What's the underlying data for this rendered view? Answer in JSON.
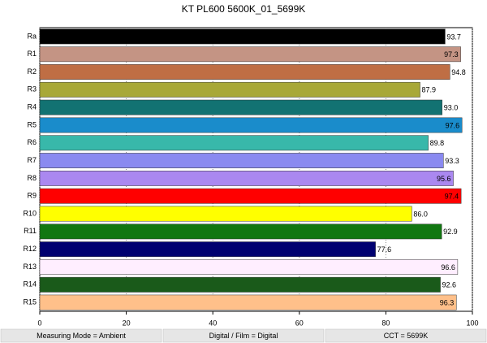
{
  "chart_data": {
    "type": "bar",
    "orientation": "horizontal",
    "title": "KT PL600 5600K_01_5699K",
    "categories": [
      "Ra",
      "R1",
      "R2",
      "R3",
      "R4",
      "R5",
      "R6",
      "R7",
      "R8",
      "R9",
      "R10",
      "R11",
      "R12",
      "R13",
      "R14",
      "R15"
    ],
    "values": [
      93.7,
      97.3,
      94.8,
      87.9,
      93.0,
      97.6,
      89.8,
      93.3,
      95.6,
      97.4,
      86.0,
      92.9,
      77.6,
      96.6,
      92.6,
      96.3
    ],
    "value_labels": [
      "93.7",
      "97.3",
      "94.8",
      "87.9",
      "93.0",
      "97.6",
      "89.8",
      "93.3",
      "95.6",
      "97.4",
      "86.0",
      "92.9",
      "77.6",
      "96.6",
      "92.6",
      "96.3"
    ],
    "colors": [
      "#000000",
      "#c49484",
      "#bf6e44",
      "#a8a838",
      "#127272",
      "#1a8ccb",
      "#38b8aa",
      "#8a8af0",
      "#aa88f0",
      "#ff0000",
      "#ffff00",
      "#117711",
      "#000070",
      "#ffeeff",
      "#1a5a1a",
      "#ffc08a"
    ],
    "xlim": [
      0,
      100
    ],
    "xticks": [
      0,
      20,
      40,
      60,
      80,
      100
    ],
    "grid": true
  },
  "footer": [
    "Measuring Mode = Ambient",
    "Digital / Film = Digital",
    "CCT = 5699K"
  ]
}
